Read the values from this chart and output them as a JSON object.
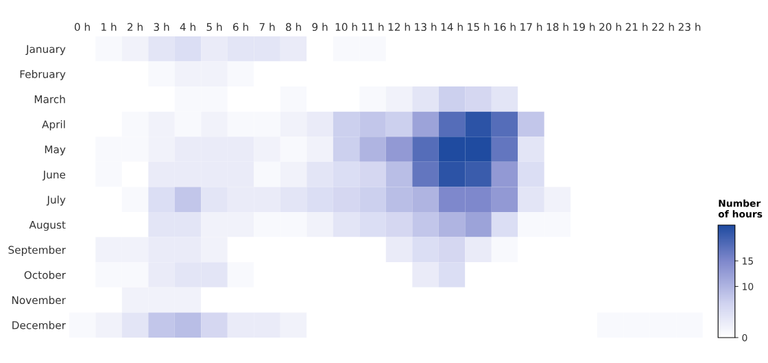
{
  "chart_data": {
    "type": "heatmap",
    "clabel": "Number\nof hours",
    "categories": [
      "0 h",
      "1 h",
      "2 h",
      "3 h",
      "4 h",
      "5 h",
      "6 h",
      "7 h",
      "8 h",
      "9 h",
      "10 h",
      "11 h",
      "12 h",
      "13 h",
      "14 h",
      "15 h",
      "16 h",
      "17 h",
      "18 h",
      "19 h",
      "20 h",
      "21 h",
      "22 h",
      "23 h"
    ],
    "y_categories": [
      "January",
      "February",
      "March",
      "April",
      "May",
      "June",
      "July",
      "August",
      "September",
      "October",
      "November",
      "December"
    ],
    "cells": [
      [
        0,
        1,
        2,
        4,
        5,
        3,
        4,
        4,
        3,
        0,
        1,
        1,
        0,
        0,
        0,
        0,
        0,
        0,
        0,
        0,
        0,
        0,
        0,
        0
      ],
      [
        0,
        0,
        0,
        1,
        2,
        2,
        1,
        0,
        0,
        0,
        0,
        0,
        0,
        0,
        0,
        0,
        0,
        0,
        0,
        0,
        0,
        0,
        0,
        0
      ],
      [
        0,
        0,
        0,
        0,
        1,
        1,
        0,
        0,
        1,
        0,
        0,
        1,
        2,
        4,
        7,
        6,
        4,
        0,
        0,
        0,
        0,
        0,
        0,
        0
      ],
      [
        0,
        0,
        1,
        2,
        1,
        2,
        1,
        1,
        2,
        3,
        7,
        8,
        7,
        12,
        18,
        21,
        18,
        8,
        0,
        0,
        0,
        0,
        0,
        0
      ],
      [
        0,
        1,
        1,
        2,
        3,
        3,
        3,
        2,
        1,
        2,
        7,
        10,
        13,
        18,
        22,
        22,
        17,
        4,
        0,
        0,
        0,
        0,
        0,
        0
      ],
      [
        0,
        1,
        0,
        3,
        3,
        3,
        3,
        1,
        2,
        4,
        5,
        6,
        9,
        17,
        21,
        20,
        13,
        5,
        0,
        0,
        0,
        0,
        0,
        0
      ],
      [
        0,
        0,
        1,
        5,
        8,
        4,
        3,
        3,
        4,
        5,
        6,
        7,
        9,
        10,
        15,
        15,
        13,
        4,
        2,
        0,
        0,
        0,
        0,
        0
      ],
      [
        0,
        0,
        0,
        4,
        4,
        2,
        2,
        1,
        1,
        2,
        4,
        5,
        6,
        8,
        10,
        12,
        5,
        1,
        1,
        0,
        0,
        0,
        0,
        0
      ],
      [
        0,
        2,
        2,
        3,
        3,
        2,
        0,
        0,
        0,
        0,
        0,
        0,
        3,
        5,
        6,
        3,
        1,
        0,
        0,
        0,
        0,
        0,
        0,
        0
      ],
      [
        0,
        1,
        1,
        3,
        4,
        4,
        1,
        0,
        0,
        0,
        0,
        0,
        0,
        3,
        5,
        0,
        0,
        0,
        0,
        0,
        0,
        0,
        0,
        0
      ],
      [
        0,
        0,
        2,
        2,
        2,
        0,
        0,
        0,
        0,
        0,
        0,
        0,
        0,
        0,
        0,
        0,
        0,
        0,
        0,
        0,
        0,
        0,
        0,
        0
      ],
      [
        1,
        2,
        4,
        8,
        9,
        6,
        3,
        3,
        2,
        0,
        0,
        0,
        0,
        0,
        0,
        0,
        0,
        0,
        0,
        0,
        1,
        1,
        1,
        1
      ]
    ],
    "clim": [
      0,
      22
    ],
    "cticks": [
      0,
      10,
      15
    ]
  }
}
